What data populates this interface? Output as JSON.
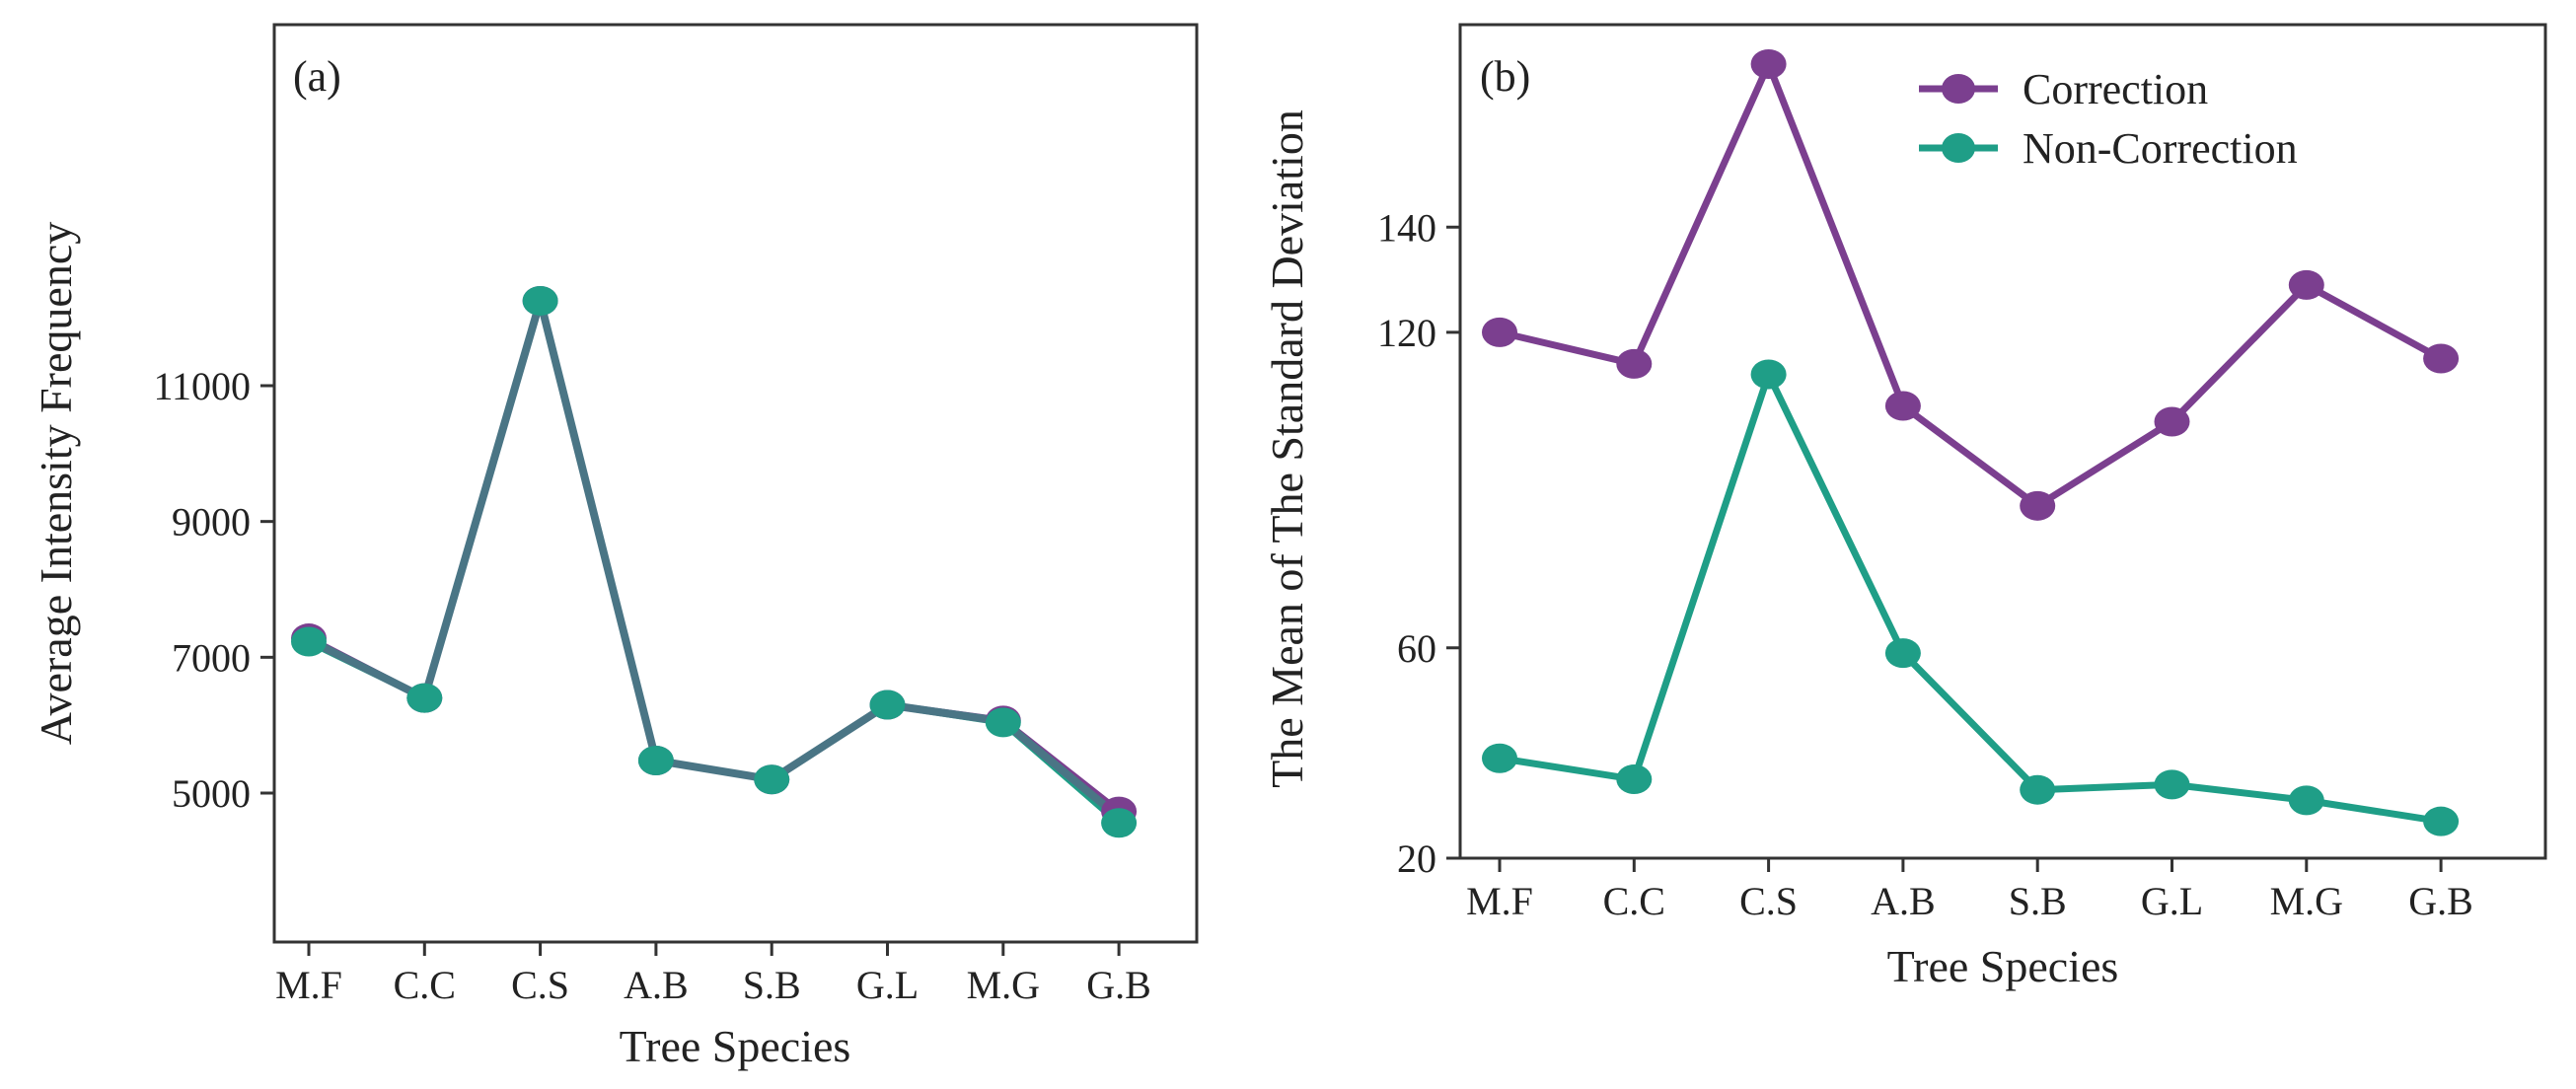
{
  "chart_data": [
    {
      "type": "line",
      "panel_label": "(a)",
      "xlabel": "Tree Species",
      "ylabel": "Average Intensity Frequency",
      "categories": [
        "M.F",
        "C.C",
        "C.S",
        "A.B",
        "S.B",
        "G.L",
        "M.G",
        "G.B"
      ],
      "yticks": [
        5000,
        7000,
        9000,
        11000
      ],
      "ylim": [
        3700,
        13000
      ],
      "grid": false,
      "series": [
        {
          "values": [
            7280,
            6400,
            12250,
            5480,
            5200,
            6300,
            6070,
            4730
          ],
          "color": "#7b3f8f"
        },
        {
          "values": [
            7230,
            6400,
            12250,
            5480,
            5200,
            6300,
            6040,
            4560
          ],
          "color": "#1f9e87"
        }
      ],
      "overlap_line_color": "#4a7585"
    },
    {
      "type": "line",
      "panel_label": "(b)",
      "xlabel": "Tree Species",
      "ylabel": "The Mean of The Standard Deviation",
      "categories": [
        "M.F",
        "C.C",
        "C.S",
        "A.B",
        "S.B",
        "G.L",
        "M.G",
        "G.B"
      ],
      "yticks": [
        20,
        60,
        120,
        140
      ],
      "ylim": [
        20,
        180
      ],
      "grid": false,
      "legend_position": "top-right",
      "series": [
        {
          "name": "Correction",
          "values": [
            120,
            114,
            171,
            106,
            87,
            103,
            129,
            115
          ],
          "color": "#7b3f8f"
        },
        {
          "name": "Non-Correction",
          "values": [
            39,
            35,
            112,
            59,
            33,
            34,
            31,
            27
          ],
          "color": "#1f9e87"
        }
      ]
    }
  ]
}
